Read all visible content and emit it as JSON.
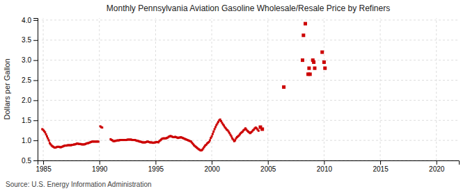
{
  "chart_data": {
    "type": "line",
    "title": "Monthly Pennsylvania Aviation Gasoline Wholesale/Resale Price by Refiners",
    "y_label": "Dollars per Gallon",
    "source": "Source: U.S. Energy Information Administration",
    "xlim": [
      1984.5,
      2022
    ],
    "ylim": [
      0.5,
      4.05
    ],
    "xticks": [
      1985,
      1990,
      1995,
      2000,
      2005,
      2010,
      2015,
      2020
    ],
    "yticks": [
      0.5,
      {
        "value": 1.0,
        "label": "1.0"
      },
      1.5,
      {
        "value": 2.0,
        "label": "2.0"
      },
      2.5,
      {
        "value": 3.0,
        "label": "3.0"
      },
      3.5,
      {
        "value": 4.0,
        "label": "4.0"
      }
    ],
    "grid": true,
    "series": [
      {
        "type": "line",
        "color": "#cc0000",
        "marker": "square",
        "line_style": "solid",
        "x": [
          1984.917,
          1985.0,
          1985.083,
          1985.167,
          1985.25,
          1985.333,
          1985.417,
          1985.5,
          1985.583,
          1985.667,
          1985.75,
          1985.833,
          1985.917,
          1986.0,
          1986.083,
          1986.167,
          1986.25,
          1986.333,
          1986.417,
          1986.5,
          1986.583,
          1986.667,
          1986.75,
          1986.833,
          1986.917,
          1987.0,
          1987.083,
          1987.167,
          1987.25,
          1987.333,
          1987.417,
          1987.5,
          1987.583,
          1987.667,
          1987.75,
          1987.833,
          1987.917,
          1988.0,
          1988.083,
          1988.167,
          1988.25,
          1988.333,
          1988.417,
          1988.5,
          1988.583,
          1988.667,
          1988.75,
          1988.833,
          1988.917,
          1989.0,
          1989.083,
          1989.167,
          1989.25,
          1989.333,
          1989.417,
          1989.5,
          1989.583,
          1989.667,
          1989.75,
          1989.833,
          1989.917,
          null,
          1990.083,
          1990.167,
          1990.25,
          null,
          1991.0,
          1991.083,
          1991.167,
          1991.25,
          1991.333,
          1991.417,
          1991.5,
          1991.583,
          1991.667,
          1991.75,
          1991.833,
          1991.917,
          1992.0,
          1992.083,
          1992.167,
          1992.25,
          1992.333,
          1992.417,
          1992.5,
          1992.583,
          1992.667,
          1992.75,
          1992.833,
          1992.917,
          1993.0,
          1993.083,
          1993.167,
          1993.25,
          1993.333,
          1993.417,
          1993.5,
          1993.583,
          1993.667,
          1993.75,
          1993.833,
          1993.917,
          1994.0,
          1994.083,
          1994.167,
          1994.25,
          1994.333,
          1994.417,
          1994.5,
          1994.583,
          1994.667,
          1994.75,
          1994.833,
          1994.917,
          1995.0,
          1995.083,
          1995.167,
          1995.25,
          1995.333,
          1995.417,
          1995.5,
          1995.583,
          1995.667,
          1995.75,
          1995.833,
          1995.917,
          1996.0,
          1996.083,
          1996.167,
          1996.25,
          1996.333,
          1996.417,
          1996.5,
          1996.583,
          1996.667,
          1996.75,
          1996.833,
          1996.917,
          1997.0,
          1997.083,
          1997.167,
          1997.25,
          1997.333,
          1997.417,
          1997.5,
          1997.583,
          1997.667,
          1997.75,
          1997.833,
          1997.917,
          1998.0,
          1998.083,
          1998.167,
          1998.25,
          1998.333,
          1998.417,
          1998.5,
          1998.583,
          1998.667,
          1998.75,
          1998.833,
          1998.917,
          1999.0,
          1999.083,
          1999.167,
          1999.25,
          1999.333,
          1999.417,
          1999.5,
          1999.583,
          1999.667,
          1999.75,
          1999.833,
          1999.917,
          2000.0,
          2000.083,
          2000.167,
          2000.25,
          2000.333,
          2000.417,
          2000.5,
          2000.583,
          2000.667,
          2000.75,
          2000.833,
          2000.917,
          2001.0,
          2001.083,
          2001.167,
          2001.25,
          2001.333,
          2001.417,
          2001.5,
          2001.583,
          2001.667,
          2001.75,
          2001.833,
          2001.917,
          2002.0,
          2002.083,
          2002.167,
          2002.25,
          2002.333,
          2002.417,
          2002.5,
          2002.583,
          2002.667,
          2002.75,
          2002.833,
          2002.917,
          2003.0,
          2003.083,
          2003.167,
          2003.25,
          2003.333,
          2003.417,
          2003.5,
          2003.583,
          2003.667,
          2003.75,
          2003.833,
          2003.917,
          2004.0,
          2004.083,
          2004.167
        ],
        "values": [
          1.28,
          1.26,
          1.23,
          1.2,
          1.15,
          1.1,
          1.05,
          1.0,
          0.93,
          0.9,
          0.87,
          0.85,
          0.84,
          0.82,
          0.82,
          0.83,
          0.84,
          0.84,
          0.84,
          0.83,
          0.83,
          0.84,
          0.85,
          0.86,
          0.87,
          0.87,
          0.87,
          0.88,
          0.88,
          0.88,
          0.88,
          0.88,
          0.89,
          0.89,
          0.9,
          0.9,
          0.91,
          0.92,
          0.92,
          0.91,
          0.91,
          0.91,
          0.9,
          0.9,
          0.9,
          0.9,
          0.91,
          0.92,
          0.93,
          0.93,
          0.94,
          0.95,
          0.96,
          0.97,
          0.97,
          0.97,
          0.97,
          0.97,
          0.97,
          0.97,
          0.97,
          null,
          1.35,
          1.33,
          1.32,
          null,
          1.03,
          1.01,
          1.0,
          0.98,
          0.98,
          0.99,
          0.99,
          1.0,
          1.0,
          1.0,
          1.01,
          1.01,
          1.01,
          1.01,
          1.01,
          1.01,
          1.01,
          1.01,
          1.02,
          1.02,
          1.02,
          1.02,
          1.02,
          1.01,
          1.01,
          1.01,
          1.01,
          1.0,
          0.99,
          0.99,
          0.98,
          0.97,
          0.97,
          0.96,
          0.95,
          0.95,
          0.95,
          0.95,
          0.96,
          0.97,
          0.97,
          0.96,
          0.95,
          0.95,
          0.95,
          0.94,
          0.94,
          0.95,
          0.95,
          0.96,
          0.96,
          0.95,
          0.98,
          1.0,
          1.02,
          1.04,
          1.05,
          1.05,
          1.05,
          1.05,
          1.06,
          1.07,
          1.09,
          1.1,
          1.11,
          1.1,
          1.09,
          1.08,
          1.08,
          1.09,
          1.08,
          1.07,
          1.06,
          1.07,
          1.07,
          1.08,
          1.07,
          1.06,
          1.05,
          1.04,
          1.03,
          1.02,
          1.01,
          1.0,
          0.99,
          0.98,
          0.97,
          0.94,
          0.91,
          0.88,
          0.86,
          0.84,
          0.82,
          0.8,
          0.78,
          0.77,
          0.75,
          0.75,
          0.77,
          0.8,
          0.84,
          0.87,
          0.89,
          0.92,
          0.94,
          0.96,
          1.0,
          1.06,
          1.1,
          1.16,
          1.22,
          1.28,
          1.33,
          1.38,
          1.42,
          1.46,
          1.5,
          1.52,
          1.48,
          1.44,
          1.4,
          1.37,
          1.33,
          1.3,
          1.27,
          1.25,
          1.22,
          1.18,
          1.14,
          1.1,
          1.05,
          1.02,
          0.98,
          1.0,
          1.05,
          1.08,
          1.1,
          1.12,
          1.15,
          1.18,
          1.2,
          1.22,
          1.25,
          1.27,
          1.3,
          1.27,
          1.24,
          1.22,
          1.2,
          1.18,
          1.2,
          1.22,
          1.25,
          1.27,
          1.3,
          1.32,
          1.3,
          1.27,
          1.24
        ]
      },
      {
        "type": "scatter",
        "color": "#cc0000",
        "marker": "square",
        "x": [
          2004.333,
          2004.5,
          2006.417,
          2008.083,
          2008.167,
          2008.333,
          2008.583,
          2008.667,
          2008.75,
          2009.0,
          2009.083,
          2009.167,
          2009.833,
          2010.0,
          2010.083
        ],
        "values": [
          1.33,
          1.28,
          2.33,
          3.0,
          3.62,
          3.91,
          2.65,
          2.8,
          2.65,
          3.0,
          2.95,
          2.8,
          3.2,
          2.95,
          2.8
        ]
      }
    ]
  }
}
